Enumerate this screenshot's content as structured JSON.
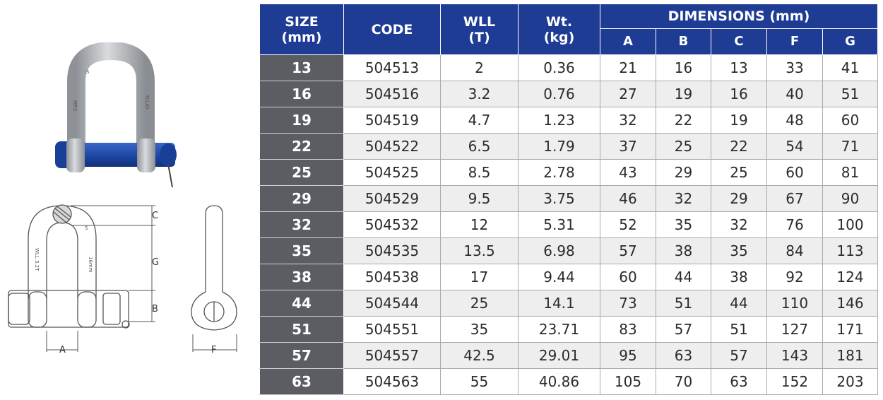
{
  "table": {
    "headers": {
      "size": "SIZE\n(mm)",
      "code": "CODE",
      "wll": "WLL\n(T)",
      "wt": "Wt.\n(kg)",
      "dimensions": "DIMENSIONS (mm)",
      "dim_cols": [
        "A",
        "B",
        "C",
        "F",
        "G"
      ]
    },
    "rows": [
      [
        "13",
        "504513",
        "2",
        "0.36",
        "21",
        "16",
        "13",
        "33",
        "41"
      ],
      [
        "16",
        "504516",
        "3.2",
        "0.76",
        "27",
        "19",
        "16",
        "40",
        "51"
      ],
      [
        "19",
        "504519",
        "4.7",
        "1.23",
        "32",
        "22",
        "19",
        "48",
        "60"
      ],
      [
        "22",
        "504522",
        "6.5",
        "1.79",
        "37",
        "25",
        "22",
        "54",
        "71"
      ],
      [
        "25",
        "504525",
        "8.5",
        "2.78",
        "43",
        "29",
        "25",
        "60",
        "81"
      ],
      [
        "29",
        "504529",
        "9.5",
        "3.75",
        "46",
        "32",
        "29",
        "67",
        "90"
      ],
      [
        "32",
        "504532",
        "12",
        "5.31",
        "52",
        "35",
        "32",
        "76",
        "100"
      ],
      [
        "35",
        "504535",
        "13.5",
        "6.98",
        "57",
        "38",
        "35",
        "84",
        "113"
      ],
      [
        "38",
        "504538",
        "17",
        "9.44",
        "60",
        "44",
        "38",
        "92",
        "124"
      ],
      [
        "44",
        "504544",
        "25",
        "14.1",
        "73",
        "51",
        "44",
        "110",
        "146"
      ],
      [
        "51",
        "504551",
        "35",
        "23.71",
        "83",
        "57",
        "51",
        "127",
        "171"
      ],
      [
        "57",
        "504557",
        "42.5",
        "29.01",
        "95",
        "63",
        "57",
        "143",
        "181"
      ],
      [
        "63",
        "504563",
        "55",
        "40.86",
        "105",
        "70",
        "63",
        "152",
        "203"
      ]
    ]
  },
  "drawing": {
    "labels": {
      "a": "A",
      "b": "B",
      "c": "C",
      "f": "F",
      "g": "G"
    },
    "body_marks": {
      "left": "WLL 3.2T",
      "right": "16mm",
      "small": "S"
    }
  },
  "photo": {
    "marks": {
      "left": "MRS",
      "right": "TCLIO",
      "small": "S"
    }
  },
  "colors": {
    "header_bg": "#1f3c95",
    "size_col_bg": "#5c5d62",
    "alt_row_bg": "#eeeeee",
    "pin_blue": "#1f4aa8",
    "steel": "#b9bcc0"
  }
}
